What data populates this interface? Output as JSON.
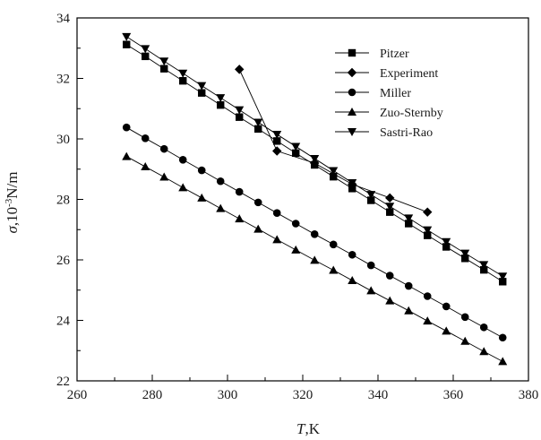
{
  "chart_data": {
    "type": "line",
    "xlabel": "T,K",
    "xlabel_italic": "T",
    "xlabel_rest": ",K",
    "ylabel_sigma": "σ",
    "ylabel_mid": ",10",
    "ylabel_exp": "-3",
    "ylabel_unit": "N/m",
    "xlim": [
      260,
      380
    ],
    "ylim": [
      22,
      34
    ],
    "xticks": [
      260,
      280,
      300,
      320,
      340,
      360,
      380
    ],
    "yticks": [
      22,
      24,
      26,
      28,
      30,
      32,
      34
    ],
    "grid": false,
    "legend_position": "top-right",
    "series": [
      {
        "name": "Pitzer",
        "marker": "square",
        "x": [
          273.15,
          278.15,
          283.15,
          288.15,
          293.15,
          298.15,
          303.15,
          308.15,
          313.15,
          318.15,
          323.15,
          328.15,
          333.15,
          338.15,
          343.15,
          348.15,
          353.15,
          358.15,
          363.15,
          368.15,
          373.15
        ],
        "y": [
          33.12,
          32.73,
          32.32,
          31.92,
          31.52,
          31.12,
          30.72,
          30.33,
          29.93,
          29.53,
          29.14,
          28.75,
          28.36,
          27.97,
          27.58,
          27.2,
          26.81,
          26.43,
          26.05,
          25.67,
          25.28
        ]
      },
      {
        "name": "Experiment",
        "marker": "diamond",
        "x": [
          303.15,
          313.15,
          323.15,
          333.15,
          343.15,
          353.15
        ],
        "y": [
          32.3,
          29.6,
          29.2,
          28.5,
          28.05,
          27.58
        ]
      },
      {
        "name": "Miller",
        "marker": "circle",
        "x": [
          273.15,
          278.15,
          283.15,
          288.15,
          293.15,
          298.15,
          303.15,
          308.15,
          313.15,
          318.15,
          323.15,
          328.15,
          333.15,
          338.15,
          343.15,
          348.15,
          353.15,
          358.15,
          363.15,
          368.15,
          373.15
        ],
        "y": [
          30.38,
          30.02,
          29.67,
          29.31,
          28.96,
          28.6,
          28.25,
          27.9,
          27.55,
          27.2,
          26.85,
          26.51,
          26.17,
          25.82,
          25.48,
          25.14,
          24.8,
          24.46,
          24.11,
          23.77,
          23.43
        ]
      },
      {
        "name": "Zuo-Sternby",
        "marker": "triangle-up",
        "x": [
          273.15,
          278.15,
          283.15,
          288.15,
          293.15,
          298.15,
          303.15,
          308.15,
          313.15,
          318.15,
          323.15,
          328.15,
          333.15,
          338.15,
          343.15,
          348.15,
          353.15,
          358.15,
          363.15,
          368.15,
          373.15
        ],
        "y": [
          29.42,
          29.08,
          28.74,
          28.39,
          28.05,
          27.7,
          27.36,
          27.02,
          26.67,
          26.33,
          25.99,
          25.66,
          25.32,
          24.98,
          24.65,
          24.32,
          23.98,
          23.65,
          23.31,
          22.97,
          22.64
        ]
      },
      {
        "name": "Sastri-Rao",
        "marker": "triangle-down",
        "x": [
          273.15,
          278.15,
          283.15,
          288.15,
          293.15,
          298.15,
          303.15,
          308.15,
          313.15,
          318.15,
          323.15,
          328.15,
          333.15,
          338.15,
          343.15,
          348.15,
          353.15,
          358.15,
          363.15,
          368.15,
          373.15
        ],
        "y": [
          33.38,
          32.98,
          32.57,
          32.17,
          31.76,
          31.36,
          30.96,
          30.55,
          30.15,
          29.75,
          29.35,
          28.95,
          28.55,
          28.16,
          27.77,
          27.38,
          26.99,
          26.6,
          26.22,
          25.84,
          25.46
        ]
      }
    ]
  }
}
